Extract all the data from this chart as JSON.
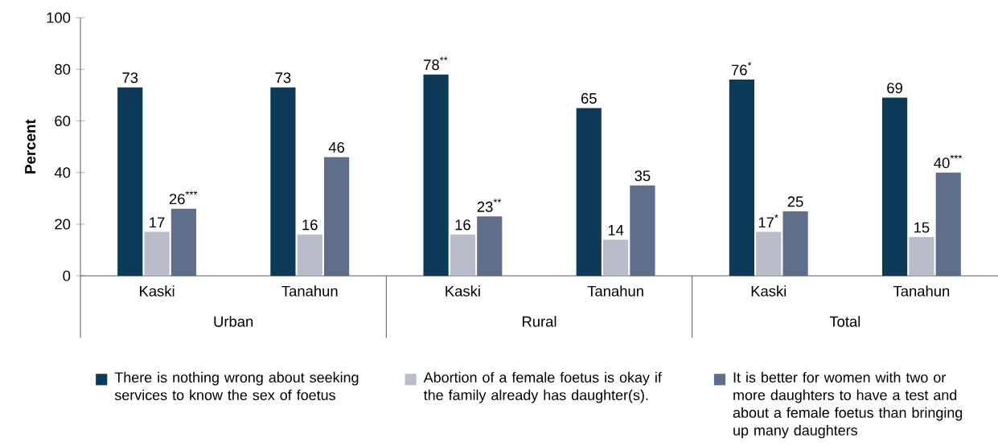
{
  "chart_data": {
    "type": "bar",
    "categories": [
      "Kaski",
      "Tanahun",
      "Kaski",
      "Tanahun",
      "Kaski",
      "Tanahun"
    ],
    "annotations": [
      "Urban",
      "Rural",
      "Total"
    ],
    "ylabel": "Percent",
    "ylim": [
      0,
      100
    ],
    "yticks": [
      0,
      20,
      40,
      60,
      80,
      100
    ],
    "grid": false,
    "legend": "bottom",
    "series": [
      {
        "name": "There is nothing wrong about seeking services to know the sex of foetus",
        "color": "#0d3a56",
        "values": [
          73,
          73,
          78,
          65,
          76,
          69
        ],
        "value_labels": [
          "73",
          "73",
          "78$^{**}$",
          "65",
          "76$^{*}$",
          "69"
        ]
      },
      {
        "name": "Abortion of a female foetus is okay if the family already has daughter(s).",
        "color": "#b9bcc9",
        "values": [
          17,
          16,
          16,
          14,
          17,
          15
        ],
        "value_labels": [
          "17",
          "16",
          "16",
          "14",
          "17$^{*}$",
          "15"
        ]
      },
      {
        "name": "It is better for women with two or more daughters to have a test and about a female foetus than bringing up many daughters",
        "color": "#5f6f89",
        "values": [
          26,
          46,
          23,
          35,
          25,
          40
        ],
        "value_labels": [
          "26$^{***}$",
          "46",
          "23$^{**}$",
          "35",
          "25",
          "40$^{***}$"
        ]
      }
    ]
  }
}
